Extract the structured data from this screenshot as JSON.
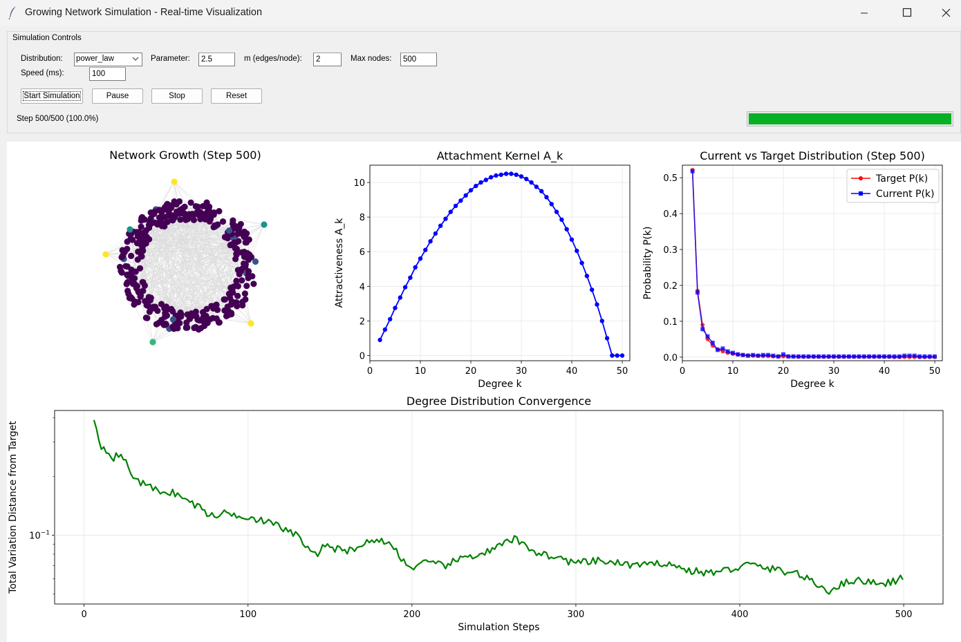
{
  "window": {
    "title": "Growing Network Simulation - Real-time Visualization",
    "app_icon": "feather-icon",
    "buttons": [
      "minimize-icon",
      "maximize-icon",
      "close-icon"
    ]
  },
  "controls": {
    "frame_title": "Simulation Controls",
    "distribution_label": "Distribution:",
    "distribution_value": "power_law",
    "parameter_label": "Parameter:",
    "parameter_value": "2.5",
    "m_label": "m (edges/node):",
    "m_value": "2",
    "max_nodes_label": "Max nodes:",
    "max_nodes_value": "500",
    "speed_label": "Speed (ms):",
    "speed_value": "100",
    "start_label": "Start Simulation",
    "pause_label": "Pause",
    "stop_label": "Stop",
    "reset_label": "Reset",
    "status_text": "Step 500/500 (100.0%)",
    "progress": 1.0,
    "progress_color": "#06b025"
  },
  "network": {
    "title": "Network Growth (Step 500)",
    "hub_colors": [
      "#fde725",
      "#21918c",
      "#35b779",
      "#3b528b",
      "#440154"
    ],
    "edge_color": "#cccccc"
  },
  "chart_data": [
    {
      "type": "line",
      "title": "Attachment Kernel A_k",
      "xlabel": "Degree k",
      "ylabel": "Attractiveness A_k",
      "xlim": [
        0,
        51.5
      ],
      "ylim": [
        -0.3,
        11
      ],
      "xticks": [
        "0",
        "10",
        "20",
        "30",
        "40",
        "50"
      ],
      "yticks": [
        "0",
        "2",
        "4",
        "6",
        "8",
        "10"
      ],
      "grid": true,
      "color": "#0000ff",
      "series": [
        {
          "x": [
            2,
            3,
            4,
            5,
            6,
            7,
            8,
            9,
            10,
            11,
            12,
            13,
            14,
            15,
            16,
            17,
            18,
            19,
            20,
            21,
            22,
            23,
            24,
            25,
            26,
            27,
            28,
            29,
            30,
            31,
            32,
            33,
            34,
            35,
            36,
            37,
            38,
            39,
            40,
            41,
            42,
            43,
            44,
            45,
            46,
            47,
            48,
            49,
            50
          ],
          "y": [
            0.9,
            1.5,
            2.1,
            2.75,
            3.35,
            3.95,
            4.5,
            5.1,
            5.6,
            6.1,
            6.6,
            7.05,
            7.5,
            7.9,
            8.3,
            8.65,
            8.95,
            9.25,
            9.55,
            9.8,
            10.0,
            10.15,
            10.3,
            10.4,
            10.45,
            10.5,
            10.5,
            10.45,
            10.35,
            10.2,
            10.0,
            9.75,
            9.5,
            9.15,
            8.75,
            8.3,
            7.85,
            7.3,
            6.7,
            6.05,
            5.35,
            4.6,
            3.8,
            2.95,
            2.0,
            1.0,
            -0.0,
            -0.0,
            0.0
          ]
        }
      ]
    },
    {
      "type": "line",
      "title": "Current vs Target Distribution (Step 500)",
      "xlabel": "Degree k",
      "ylabel": "Probability P(k)",
      "xlim": [
        0,
        51.5
      ],
      "ylim": [
        -0.01,
        0.535
      ],
      "xticks": [
        "0",
        "10",
        "20",
        "30",
        "40",
        "50"
      ],
      "yticks": [
        "0.0",
        "0.1",
        "0.2",
        "0.3",
        "0.4",
        "0.5"
      ],
      "grid": true,
      "legend": "top-right",
      "x": [
        2,
        3,
        4,
        5,
        6,
        7,
        8,
        9,
        10,
        11,
        12,
        13,
        14,
        15,
        16,
        17,
        18,
        19,
        20,
        21,
        22,
        23,
        24,
        25,
        26,
        27,
        28,
        29,
        30,
        31,
        32,
        33,
        34,
        35,
        36,
        37,
        38,
        39,
        40,
        41,
        42,
        43,
        44,
        45,
        46,
        47,
        48,
        49,
        50
      ],
      "series": [
        {
          "name": "Target P(k)",
          "color": "#ff0000",
          "marker": "circle",
          "values": [
            0.522,
            0.185,
            0.09,
            0.05,
            0.032,
            0.022,
            0.016,
            0.012,
            0.009,
            0.007,
            0.006,
            0.005,
            0.004,
            0.004,
            0.003,
            0.003,
            0.002,
            0.002,
            0.002,
            0.002,
            0.002,
            0.001,
            0.001,
            0.001,
            0.001,
            0.001,
            0.001,
            0.001,
            0.001,
            0.001,
            0.001,
            0.001,
            0.001,
            0.001,
            0.001,
            0.001,
            0.001,
            0.001,
            0.001,
            0.001,
            0.0,
            0.0,
            0.0,
            0.0,
            0.0,
            0.0,
            0.0,
            0.0,
            0.0
          ]
        },
        {
          "name": "Current P(k)",
          "color": "#0000ff",
          "marker": "square",
          "values": [
            0.518,
            0.18,
            0.078,
            0.058,
            0.04,
            0.02,
            0.024,
            0.016,
            0.012,
            0.008,
            0.006,
            0.004,
            0.006,
            0.004,
            0.006,
            0.006,
            0.004,
            0.002,
            0.008,
            0.002,
            0.002,
            0.002,
            0.002,
            0.002,
            0.002,
            0.002,
            0.002,
            0.002,
            0.002,
            0.002,
            0.002,
            0.002,
            0.002,
            0.002,
            0.002,
            0.002,
            0.002,
            0.002,
            0.002,
            0.002,
            0.002,
            0.002,
            0.004,
            0.004,
            0.004,
            0.002,
            0.002,
            0.002,
            0.002
          ]
        }
      ]
    },
    {
      "type": "line",
      "title": "Degree Distribution Convergence",
      "xlabel": "Simulation Steps",
      "ylabel": "Total Variation Distance from Target",
      "yscale": "log",
      "xlim": [
        -18,
        524
      ],
      "ylim": [
        0.0445,
        0.435
      ],
      "xticks": [
        "0",
        "100",
        "200",
        "300",
        "400",
        "500"
      ],
      "ytick_value": 0.1,
      "grid": true,
      "color": "#008000",
      "anchors": [
        [
          6,
          0.4
        ],
        [
          9,
          0.31
        ],
        [
          11,
          0.28
        ],
        [
          14,
          0.275
        ],
        [
          18,
          0.25
        ],
        [
          23,
          0.26
        ],
        [
          28,
          0.21
        ],
        [
          35,
          0.185
        ],
        [
          44,
          0.17
        ],
        [
          55,
          0.165
        ],
        [
          63,
          0.15
        ],
        [
          70,
          0.14
        ],
        [
          78,
          0.125
        ],
        [
          85,
          0.13
        ],
        [
          100,
          0.125
        ],
        [
          110,
          0.118
        ],
        [
          120,
          0.11
        ],
        [
          130,
          0.1
        ],
        [
          140,
          0.078
        ],
        [
          148,
          0.09
        ],
        [
          158,
          0.082
        ],
        [
          170,
          0.09
        ],
        [
          180,
          0.096
        ],
        [
          190,
          0.085
        ],
        [
          198,
          0.068
        ],
        [
          208,
          0.072
        ],
        [
          220,
          0.07
        ],
        [
          232,
          0.077
        ],
        [
          248,
          0.083
        ],
        [
          262,
          0.096
        ],
        [
          276,
          0.082
        ],
        [
          290,
          0.076
        ],
        [
          300,
          0.072
        ],
        [
          315,
          0.074
        ],
        [
          330,
          0.071
        ],
        [
          345,
          0.07
        ],
        [
          355,
          0.073
        ],
        [
          365,
          0.067
        ],
        [
          380,
          0.064
        ],
        [
          395,
          0.067
        ],
        [
          405,
          0.071
        ],
        [
          420,
          0.067
        ],
        [
          435,
          0.064
        ],
        [
          445,
          0.057
        ],
        [
          454,
          0.052
        ],
        [
          460,
          0.055
        ],
        [
          468,
          0.059
        ],
        [
          478,
          0.058
        ],
        [
          490,
          0.057
        ],
        [
          500,
          0.061
        ]
      ]
    }
  ]
}
